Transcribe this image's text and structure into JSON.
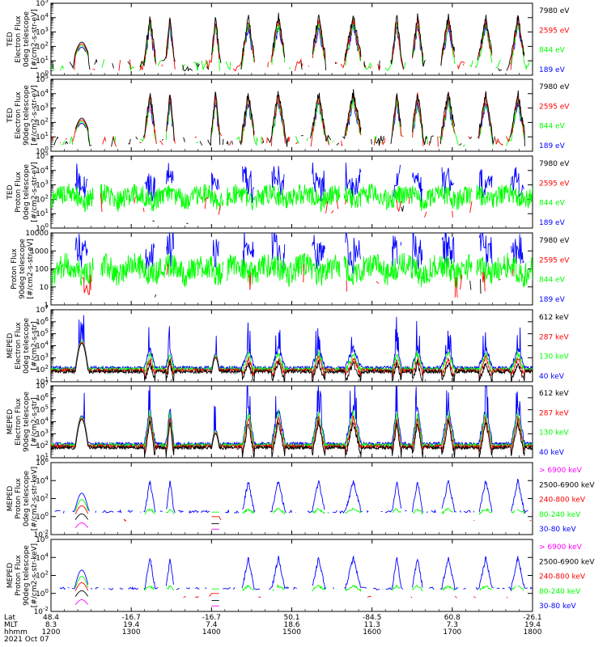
{
  "colors": {
    "black": "#000000",
    "red": "#ff0000",
    "green": "#00ff00",
    "blue": "#0000ff",
    "magenta": "#ff00ff"
  },
  "chart_data": [
    {
      "type": "line",
      "ylabel": [
        "TED",
        "Electron Flux",
        "0deg telescope",
        "[#/cm2-s-str-eV]"
      ],
      "yscale": "log",
      "ylim": [
        1,
        100000
      ],
      "ytick_labels": [
        "10^0",
        "10^1",
        "10^2",
        "10^3",
        "10^4",
        "10^5"
      ],
      "legend": [
        {
          "name": "7980 eV",
          "color": "black"
        },
        {
          "name": "2595 eV",
          "color": "red"
        },
        {
          "name": "844 eV",
          "color": "green"
        },
        {
          "name": "189 eV",
          "color": "blue"
        }
      ],
      "seed": 11,
      "kind": "ted_e",
      "base": 1.2,
      "vis": 0.32
    },
    {
      "type": "line",
      "ylabel": [
        "TED",
        "Electron Flux",
        "90deg telescope",
        "[#/cm2-s-str-eV]"
      ],
      "yscale": "log",
      "ylim": [
        1,
        100000
      ],
      "ytick_labels": [
        "10^0",
        "10^1",
        "10^2",
        "10^3",
        "10^4",
        "10^5"
      ],
      "legend": [
        {
          "name": "7980 eV",
          "color": "black"
        },
        {
          "name": "2595 eV",
          "color": "red"
        },
        {
          "name": "844 eV",
          "color": "green"
        },
        {
          "name": "189 eV",
          "color": "blue"
        }
      ],
      "seed": 23,
      "kind": "ted_e",
      "base": 1.0,
      "vis": 0.28
    },
    {
      "type": "line",
      "ylabel": [
        "TED",
        "Proton Flux",
        "0deg telescope",
        "[#/cm2-s-str-eV]"
      ],
      "yscale": "log",
      "ylim": [
        1,
        100000
      ],
      "ytick_labels": [
        "10^0",
        "10^1",
        "10^2",
        "10^3",
        "10^4",
        "10^5"
      ],
      "legend": [
        {
          "name": "7980 eV",
          "color": "black"
        },
        {
          "name": "2595 eV",
          "color": "red"
        },
        {
          "name": "844 eV",
          "color": "green"
        },
        {
          "name": "189 eV",
          "color": "blue"
        }
      ],
      "seed": 37,
      "kind": "ted_p",
      "base": 1.8,
      "vis": 0.9
    },
    {
      "type": "line",
      "ylabel": [
        "Proton Flux",
        "90deg telescope",
        "[#/cm2-s-str-eV]"
      ],
      "yscale": "log",
      "ylim": [
        1,
        10000
      ],
      "ytick_labels": [
        "1",
        "10",
        "100",
        "1000",
        "10000"
      ],
      "legend": [
        {
          "name": "7980 eV",
          "color": "black"
        },
        {
          "name": "2595 eV",
          "color": "red"
        },
        {
          "name": "844 eV",
          "color": "green"
        },
        {
          "name": "189 eV",
          "color": "blue"
        }
      ],
      "seed": 41,
      "kind": "ted_p",
      "base": 1.6,
      "vis": 0.9
    },
    {
      "type": "line",
      "ylabel": [
        "MEPED",
        "Electron Flux",
        "0deg telescope",
        "[#/cm2-s-str]"
      ],
      "yscale": "log",
      "ylim": [
        10,
        10000000
      ],
      "ytick_labels": [
        "10^1",
        "10^2",
        "10^3",
        "10^4",
        "10^5",
        "10^6",
        "10^7"
      ],
      "legend": [
        {
          "name": "612 keV",
          "color": "black"
        },
        {
          "name": "287 keV",
          "color": "red"
        },
        {
          "name": "130 keV",
          "color": "green"
        },
        {
          "name": "40 keV",
          "color": "blue"
        }
      ],
      "seed": 53,
      "kind": "meped_e0",
      "base": 2.0,
      "vis": 1.0
    },
    {
      "type": "line",
      "ylabel": [
        "MEPED",
        "Electron Flux",
        "90deg telescope",
        "[#/cm2-s-str]"
      ],
      "yscale": "log",
      "ylim": [
        10,
        10000000
      ],
      "ytick_labels": [
        "10^1",
        "10^2",
        "10^3",
        "10^4",
        "10^5",
        "10^6",
        "10^7"
      ],
      "legend": [
        {
          "name": "612 keV",
          "color": "black"
        },
        {
          "name": "287 keV",
          "color": "red"
        },
        {
          "name": "130 keV",
          "color": "green"
        },
        {
          "name": "40 keV",
          "color": "blue"
        }
      ],
      "seed": 67,
      "kind": "meped_e90",
      "base": 2.0,
      "vis": 1.0
    },
    {
      "type": "line",
      "ylabel": [
        "MEPED",
        "Proton Flux",
        "0deg telescope",
        "[#/cm2-s-str-keV]"
      ],
      "yscale": "log",
      "ylim": [
        0.01,
        1000000
      ],
      "ytick_labels": [
        "10^-2",
        "10^0",
        "10^2",
        "10^4",
        "10^6"
      ],
      "legend": [
        {
          "name": "> 6900 keV",
          "color": "magenta"
        },
        {
          "name": "2500-6900 keV",
          "color": "black"
        },
        {
          "name": "240-800 keV",
          "color": "red"
        },
        {
          "name": "80-240 keV",
          "color": "green"
        },
        {
          "name": "30-80 keV",
          "color": "blue"
        }
      ],
      "seed": 79,
      "kind": "meped_p",
      "base": 0.0,
      "vis": 1.0
    },
    {
      "type": "line",
      "ylabel": [
        "MEPED",
        "Proton Flux",
        "90deg telescope",
        "[#/cm2-s-str-keV]"
      ],
      "yscale": "log",
      "ylim": [
        0.01,
        1000000
      ],
      "ytick_labels": [
        "10^-2",
        "10^0",
        "10^2",
        "10^4",
        "10^6"
      ],
      "legend": [
        {
          "name": "> 6900 keV",
          "color": "magenta"
        },
        {
          "name": "2500-6900 keV",
          "color": "black"
        },
        {
          "name": "240-800 keV",
          "color": "red"
        },
        {
          "name": "80-240 keV",
          "color": "green"
        },
        {
          "name": "30-80 keV",
          "color": "blue"
        }
      ],
      "seed": 83,
      "kind": "meped_p",
      "base": 0.0,
      "vis": 1.0
    }
  ],
  "x_axis": {
    "range_minutes": [
      720,
      1080
    ],
    "row_labels": [
      "Lat",
      "MLT",
      "hhmm"
    ],
    "ticks": [
      {
        "minutes": 720,
        "lat": "48.4",
        "mlt": "8.3",
        "hhmm": "1200"
      },
      {
        "minutes": 780,
        "lat": "-16.7",
        "mlt": "19.4",
        "hhmm": "1300"
      },
      {
        "minutes": 840,
        "lat": "-16.7",
        "mlt": "7.4",
        "hhmm": "1400"
      },
      {
        "minutes": 900,
        "lat": "50.1",
        "mlt": "18.6",
        "hhmm": "1500"
      },
      {
        "minutes": 960,
        "lat": "-84.5",
        "mlt": "11.3",
        "hhmm": "1600"
      },
      {
        "minutes": 1020,
        "lat": "60.8",
        "mlt": "7.3",
        "hhmm": "1700"
      },
      {
        "minutes": 1080,
        "lat": "-26.1",
        "mlt": "19.4",
        "hhmm": "1800"
      }
    ],
    "date": "2021 Oct 07"
  }
}
